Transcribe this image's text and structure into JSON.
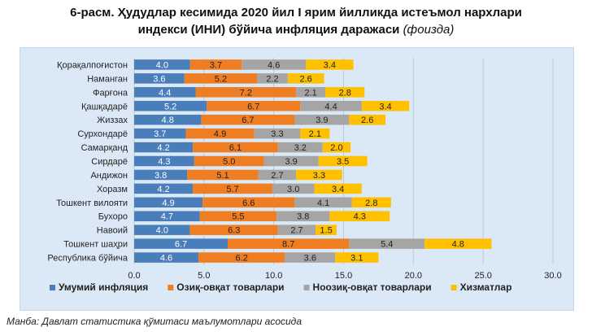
{
  "title_line1": "6-расм. Ҳудудлар кесимида 2020 йил I ярим йилликда истеъмол нархлари",
  "title_line2": "индекси (ИНИ) бўйича инфляция даражаси",
  "title_unit": "(фоизда)",
  "source": "Манба: Давлат статистика қўмитаси маълумотлари асосида",
  "chart_data": {
    "type": "bar",
    "orientation": "horizontal",
    "stacked": true,
    "categories": [
      "Қорақалпоғистон",
      "Наманган",
      "Фарғона",
      "Қашқадарё",
      "Жиззах",
      "Сурхондарё",
      "Самарқанд",
      "Сирдарё",
      "Андижон",
      "Хоразм",
      "Тошкент вилояти",
      "Бухоро",
      "Навоий",
      "Тошкент шаҳри",
      "Республика бўйича"
    ],
    "series": [
      {
        "name": "Умумий инфляция",
        "color": "#4a7ebb",
        "label_color": "#ffffff",
        "values": [
          4.0,
          3.6,
          4.4,
          5.2,
          4.8,
          3.7,
          4.2,
          4.3,
          3.8,
          4.2,
          4.9,
          4.7,
          4.0,
          6.7,
          4.6
        ]
      },
      {
        "name": "Озиқ-овқат товарлари",
        "color": "#ef7d22",
        "label_color": "#222222",
        "values": [
          3.7,
          5.2,
          7.2,
          6.7,
          6.7,
          4.9,
          6.1,
          5.0,
          5.1,
          5.7,
          6.6,
          5.5,
          6.3,
          8.7,
          6.2
        ]
      },
      {
        "name": "Ноозиқ-овқат товарлари",
        "color": "#a5a5a5",
        "label_color": "#222222",
        "values": [
          4.6,
          2.2,
          2.1,
          4.4,
          3.9,
          3.3,
          3.2,
          3.9,
          2.7,
          3.0,
          4.1,
          3.8,
          2.7,
          5.4,
          3.6
        ]
      },
      {
        "name": "Хизматлар",
        "color": "#ffc000",
        "label_color": "#222222",
        "values": [
          3.4,
          2.6,
          2.8,
          3.4,
          2.6,
          2.1,
          2.0,
          3.5,
          3.3,
          3.4,
          2.8,
          4.3,
          1.5,
          4.8,
          3.1
        ]
      }
    ],
    "xlim": [
      0,
      30
    ],
    "xticks": [
      "0.0",
      "5.0",
      "10.0",
      "15.0",
      "20.0",
      "25.0",
      "30.0"
    ],
    "grid": "vertical",
    "legend_position": "bottom"
  }
}
